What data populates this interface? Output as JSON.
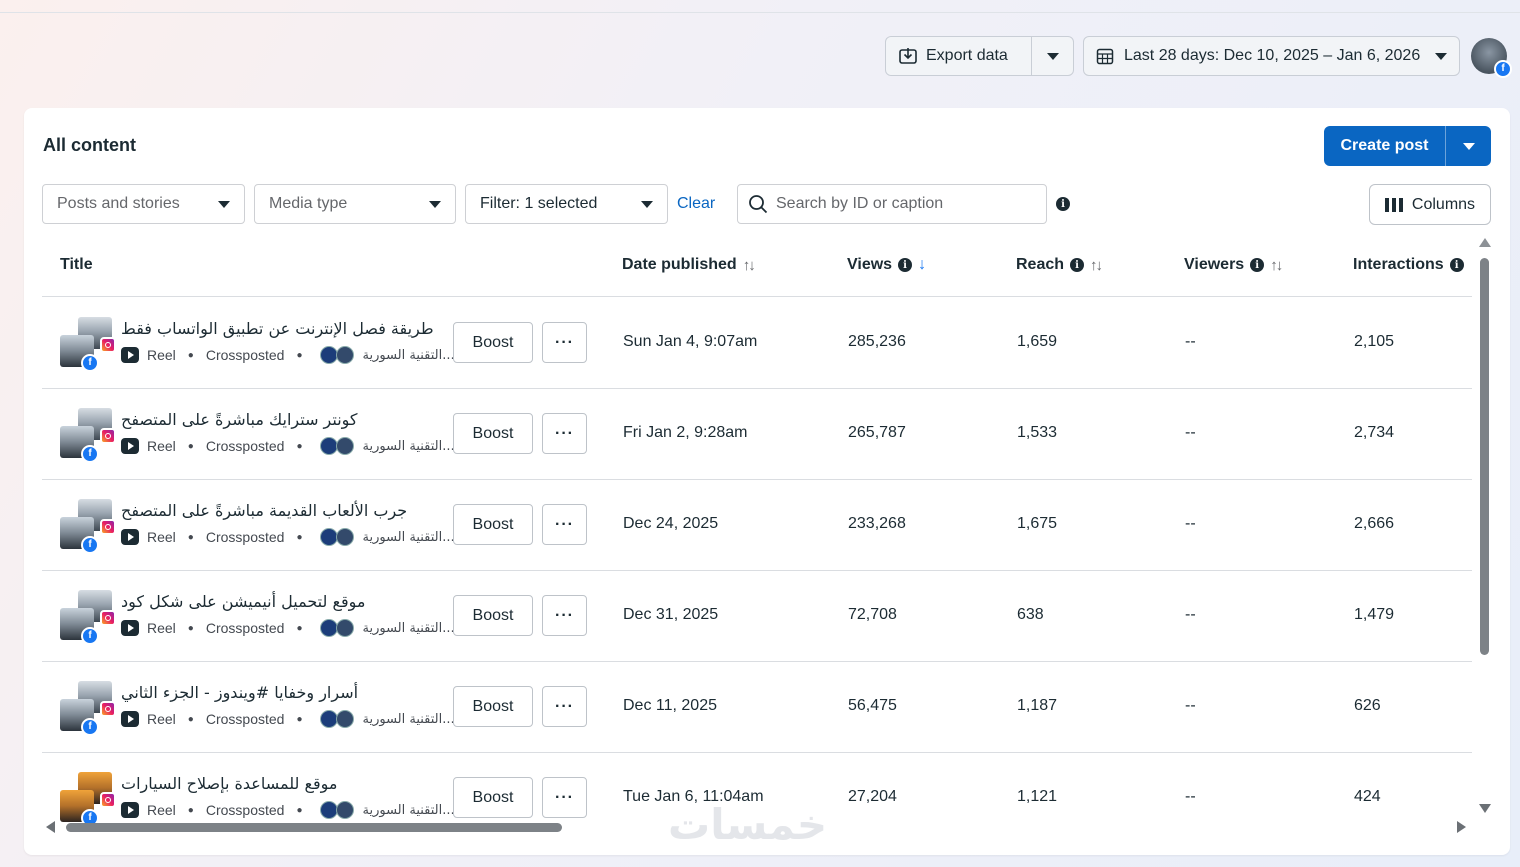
{
  "topbar": {
    "export_label": "Export data",
    "date_range_label": "Last 28 days: Dec 10, 2025 – Jan 6, 2026"
  },
  "card": {
    "title": "All content",
    "create_post_label": "Create post",
    "filters": {
      "content_type": "Posts and stories",
      "media_type": "Media type",
      "filter": "Filter: 1 selected",
      "clear": "Clear",
      "search_placeholder": "Search by ID or caption",
      "columns": "Columns"
    }
  },
  "table": {
    "headers": {
      "title": "Title",
      "date": "Date published",
      "views": "Views",
      "reach": "Reach",
      "viewers": "Viewers",
      "interactions": "Interactions"
    },
    "boost_label": "Boost",
    "more_label": "···",
    "reel_label": "Reel",
    "crossposted_label": "Crossposted",
    "page_name": "التقنية السورية...",
    "rows": [
      {
        "title": "طريقة فصل الإنترنت عن تطبيق الواتساب فقط",
        "date": "Sun Jan 4, 9:07am",
        "views": "285,236",
        "reach": "1,659",
        "viewers": "--",
        "interactions": "2,105"
      },
      {
        "title": "كونتر سترايك مباشرةً على المتصفح",
        "date": "Fri Jan 2, 9:28am",
        "views": "265,787",
        "reach": "1,533",
        "viewers": "--",
        "interactions": "2,734"
      },
      {
        "title": "جرب الألعاب القديمة مباشرةً على المتصفح",
        "date": "Dec 24, 2025",
        "views": "233,268",
        "reach": "1,675",
        "viewers": "--",
        "interactions": "2,666"
      },
      {
        "title": "موقع لتحميل أنيميشن على شكل كود",
        "date": "Dec 31, 2025",
        "views": "72,708",
        "reach": "638",
        "viewers": "--",
        "interactions": "1,479"
      },
      {
        "title": "أسرار وخفايا #ويندوز - الجزء الثاني",
        "date": "Dec 11, 2025",
        "views": "56,475",
        "reach": "1,187",
        "viewers": "--",
        "interactions": "626"
      },
      {
        "title": "موقع للمساعدة بإصلاح السيارات",
        "date": "Tue Jan 6, 11:04am",
        "views": "27,204",
        "reach": "1,121",
        "viewers": "--",
        "interactions": "424"
      }
    ]
  },
  "watermark": "خمسات"
}
